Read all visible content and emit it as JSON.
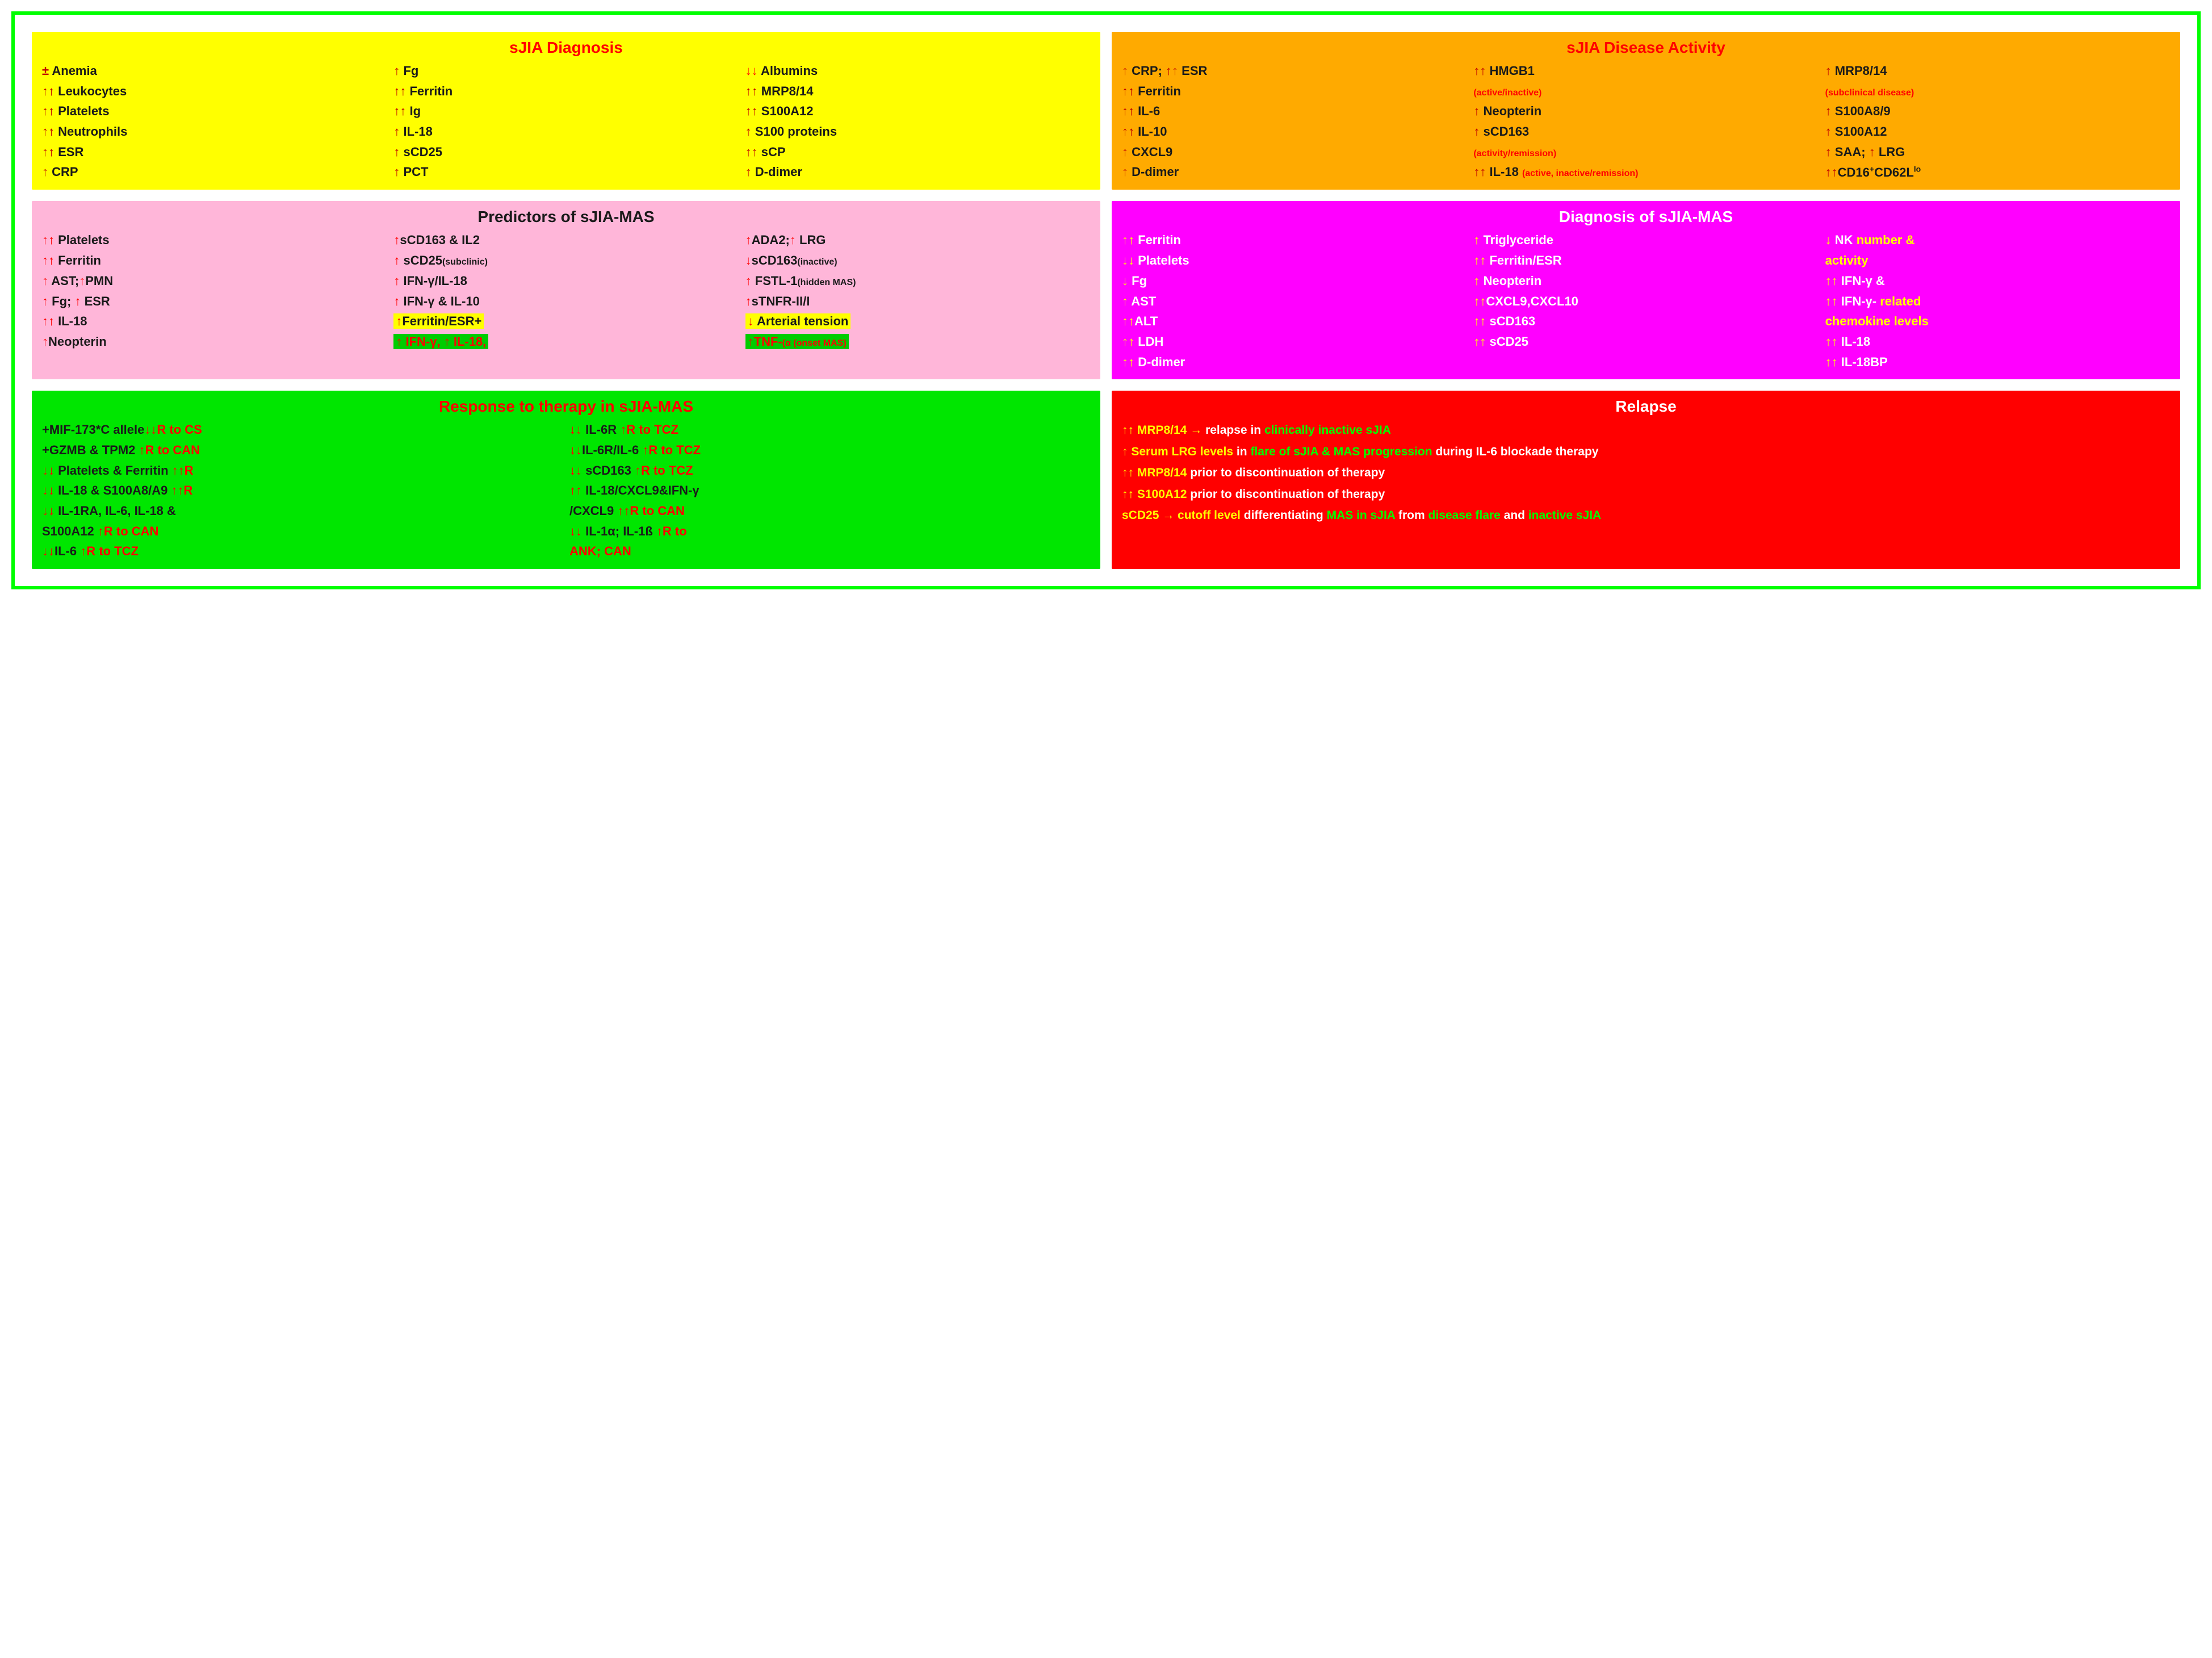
{
  "panels": {
    "diagnosis": {
      "title": "sJIA Diagnosis",
      "title_color": "#ff0000",
      "bg": "#ffff00",
      "items": [
        {
          "arrow": "±",
          "arrow_color": "#c00000",
          "text": "Anemia",
          "text_color": "#1a1a1a"
        },
        {
          "arrow": "↑",
          "arrow_color": "#c00000",
          "text": "Fg",
          "text_color": "#1a1a1a"
        },
        {
          "arrow": "↓↓",
          "arrow_color": "#ff0000",
          "text": "Albumins",
          "text_color": "#1a1a1a"
        },
        {
          "arrow": "↑↑",
          "arrow_color": "#c00000",
          "text": "Leukocytes",
          "text_color": "#1a1a1a"
        },
        {
          "arrow": "↑↑",
          "arrow_color": "#c00000",
          "text": "Ferritin",
          "text_color": "#1a1a1a"
        },
        {
          "arrow": "↑↑",
          "arrow_color": "#c00000",
          "text": "MRP8/14",
          "text_color": "#1a1a1a"
        },
        {
          "arrow": "↑↑",
          "arrow_color": "#c00000",
          "text": "Platelets",
          "text_color": "#1a1a1a"
        },
        {
          "arrow": "↑↑",
          "arrow_color": "#c00000",
          "text": "Ig",
          "text_color": "#1a1a1a"
        },
        {
          "arrow": "↑↑",
          "arrow_color": "#c00000",
          "text": "S100A12",
          "text_color": "#1a1a1a"
        },
        {
          "arrow": "↑↑",
          "arrow_color": "#c00000",
          "text": "Neutrophils",
          "text_color": "#1a1a1a"
        },
        {
          "arrow": "↑",
          "arrow_color": "#c00000",
          "text": "IL-18",
          "text_color": "#1a1a1a"
        },
        {
          "arrow": "↑",
          "arrow_color": "#c00000",
          "text": "S100 proteins",
          "text_color": "#1a1a1a"
        },
        {
          "arrow": "↑↑",
          "arrow_color": "#c00000",
          "text": "ESR",
          "text_color": "#1a1a1a"
        },
        {
          "arrow": "↑",
          "arrow_color": "#c00000",
          "text": "sCD25",
          "text_color": "#1a1a1a"
        },
        {
          "arrow": "↑↑",
          "arrow_color": "#c00000",
          "text": "sCP",
          "text_color": "#1a1a1a"
        },
        {
          "arrow": "↑",
          "arrow_color": "#c00000",
          "text": "CRP",
          "text_color": "#1a1a1a"
        },
        {
          "arrow": "↑",
          "arrow_color": "#c00000",
          "text": "PCT",
          "text_color": "#1a1a1a"
        },
        {
          "arrow": "↑",
          "arrow_color": "#c00000",
          "text": "D-dimer",
          "text_color": "#1a1a1a"
        }
      ]
    },
    "activity": {
      "title": "sJIA Disease Activity",
      "title_color": "#ff0000",
      "bg": "#ffaa00"
    },
    "predictors": {
      "title": "Predictors of sJIA-MAS",
      "title_color": "#1a1a1a",
      "bg": "#ffb6d9"
    },
    "mas_diagnosis": {
      "title": "Diagnosis of sJIA-MAS",
      "title_color": "#ffffff",
      "bg": "#ff00ff"
    },
    "response": {
      "title": "Response to therapy in sJIA-MAS",
      "title_color": "#ff0000",
      "bg": "#00e600"
    },
    "relapse": {
      "title": "Relapse",
      "title_color": "#ffffff",
      "bg": "#ff0000"
    }
  },
  "colors": {
    "border": "#00ff00",
    "red": "#ff0000",
    "darkred": "#c00000",
    "white": "#ffffff",
    "yellow": "#ffff00",
    "green": "#00ff00",
    "dark": "#1a1a1a",
    "orange": "#ff6600"
  },
  "fonts": {
    "title_size": 28,
    "cell_size": 22,
    "small_size": 16,
    "relapse_size": 21
  }
}
